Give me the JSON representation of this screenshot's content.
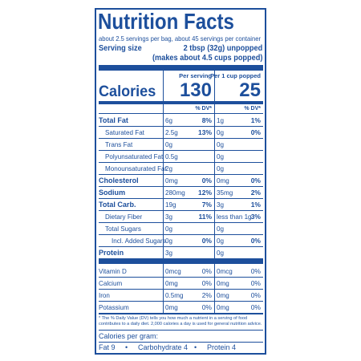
{
  "header": {
    "title": "Nutrition Facts",
    "servings": "about 2.5 servings per bag, about 45 servings per container",
    "serving_size_label": "Serving size",
    "serving_size": "2 tbsp (32g) unpopped",
    "serving_size_popped": "(makes about 4.5 cups popped)"
  },
  "columns": [
    "Per serving",
    "Per 1 cup popped"
  ],
  "calories": {
    "label": "Calories",
    "values": [
      "130",
      "25"
    ],
    "dv_header": "% DV*"
  },
  "nutrients": [
    {
      "name": "Total Fat",
      "bold": true,
      "indent": 0,
      "values": [
        [
          "6g",
          "8%"
        ],
        [
          "1g",
          "1%"
        ]
      ]
    },
    {
      "name": "Saturated Fat",
      "bold": false,
      "indent": 1,
      "values": [
        [
          "2.5g",
          "13%"
        ],
        [
          "0g",
          "0%"
        ]
      ]
    },
    {
      "name": "Trans Fat",
      "bold": false,
      "indent": 1,
      "values": [
        [
          "0g"
        ],
        [
          "0g"
        ]
      ]
    },
    {
      "name": "Polyunsaturated Fat",
      "bold": false,
      "indent": 1,
      "values": [
        [
          "0.5g"
        ],
        [
          "0g"
        ]
      ]
    },
    {
      "name": "Monounsaturated Fat",
      "bold": false,
      "indent": 1,
      "values": [
        [
          "2g"
        ],
        [
          "0g"
        ]
      ]
    },
    {
      "name": "Cholesterol",
      "bold": true,
      "indent": 0,
      "values": [
        [
          "0mg",
          "0%"
        ],
        [
          "0mg",
          "0%"
        ]
      ]
    },
    {
      "name": "Sodium",
      "bold": true,
      "indent": 0,
      "values": [
        [
          "280mg",
          "12%"
        ],
        [
          "35mg",
          "2%"
        ]
      ]
    },
    {
      "name": "Total Carb.",
      "bold": true,
      "indent": 0,
      "values": [
        [
          "19g",
          "7%"
        ],
        [
          "3g",
          "1%"
        ]
      ]
    },
    {
      "name": "Dietary Fiber",
      "bold": false,
      "indent": 1,
      "values": [
        [
          "3g",
          "11%"
        ],
        [
          "less than 1g",
          "3%"
        ]
      ]
    },
    {
      "name": "Total Sugars",
      "bold": false,
      "indent": 1,
      "values": [
        [
          "0g"
        ],
        [
          "0g"
        ]
      ]
    },
    {
      "name": "Incl. Added Sugars",
      "bold": false,
      "indent": 2,
      "values": [
        [
          "0g",
          "0%"
        ],
        [
          "0g",
          "0%"
        ]
      ]
    },
    {
      "name": "Protein",
      "bold": true,
      "indent": 0,
      "values": [
        [
          "3g"
        ],
        [
          "0g"
        ]
      ]
    }
  ],
  "vitamins": [
    {
      "name": "Vitamin D",
      "values": [
        [
          "0mcg",
          "0%"
        ],
        [
          "0mcg",
          "0%"
        ]
      ]
    },
    {
      "name": "Calcium",
      "values": [
        [
          "0mg",
          "0%"
        ],
        [
          "0mg",
          "0%"
        ]
      ]
    },
    {
      "name": "Iron",
      "values": [
        [
          "0.5mg",
          "2%"
        ],
        [
          "0mg",
          "0%"
        ]
      ]
    },
    {
      "name": "Potassium",
      "values": [
        [
          "0mg",
          "0%"
        ],
        [
          "0mg",
          "0%"
        ]
      ]
    }
  ],
  "footnote": "* The % Daily Value (DV) tells you how much a nutrient in a serving of food contributes to a daily diet. 2,000 calories a day is used for general nutrition advice.",
  "calories_per_gram": {
    "label": "Calories per gram:",
    "items": [
      "Fat 9",
      "Carbohydrate 4",
      "Protein 4"
    ],
    "separator": "•"
  }
}
